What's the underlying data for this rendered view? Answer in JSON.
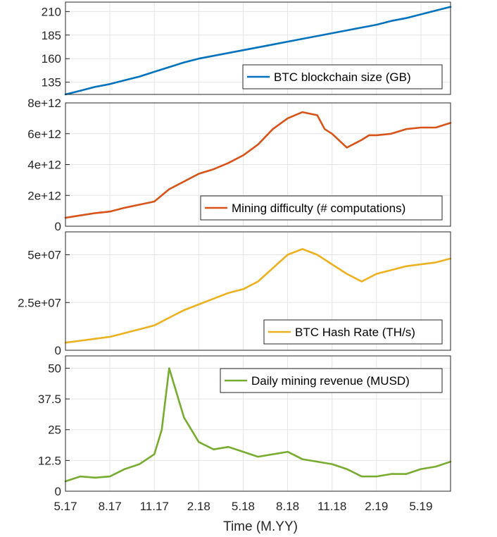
{
  "xlabel": "Time (M.YY)",
  "x_tick_labels": [
    "5.17",
    "8.17",
    "11.17",
    "2.18",
    "5.18",
    "8.18",
    "11.18",
    "2.19",
    "5.19"
  ],
  "chart_data": [
    {
      "type": "line",
      "series_name": "BTC blockchain size (GB)",
      "color": "#0072BD",
      "ylim": [
        122,
        220
      ],
      "y_ticks": [
        135,
        160,
        185,
        210
      ],
      "y_tick_labels": [
        "135",
        "160",
        "185",
        "210"
      ],
      "legend": "BTC blockchain size (GB)",
      "x": [
        0,
        1,
        2,
        3,
        4,
        5,
        6,
        7,
        8,
        9,
        10,
        11,
        12,
        13,
        14,
        15,
        16,
        17,
        18,
        19,
        20,
        21,
        22,
        23,
        24,
        25,
        26
      ],
      "values": [
        122,
        126,
        130,
        133,
        137,
        141,
        146,
        151,
        156,
        160,
        163,
        166,
        169,
        172,
        175,
        178,
        181,
        184,
        187,
        190,
        193,
        196,
        200,
        203,
        207,
        211,
        215
      ]
    },
    {
      "type": "line",
      "series_name": "Mining difficulty (# computations)",
      "color": "#D95319",
      "ylim": [
        0,
        8000000000000.0
      ],
      "y_ticks": [
        0,
        2000000000000.0,
        4000000000000.0,
        6000000000000.0,
        8000000000000.0
      ],
      "y_tick_labels": [
        "0",
        "2e+12",
        "4e+12",
        "6e+12",
        "8e+12"
      ],
      "legend": "Mining difficulty (# computations)",
      "x": [
        0,
        1,
        2,
        3,
        4,
        5,
        6,
        7,
        8,
        9,
        10,
        11,
        12,
        13,
        14,
        15,
        16,
        17,
        17.5,
        18,
        19,
        20,
        20.5,
        21,
        22,
        23,
        24,
        25,
        26
      ],
      "values": [
        550000000000.0,
        700000000000.0,
        850000000000.0,
        950000000000.0,
        1200000000000.0,
        1400000000000.0,
        1600000000000.0,
        2400000000000.0,
        2900000000000.0,
        3400000000000.0,
        3700000000000.0,
        4100000000000.0,
        4600000000000.0,
        5300000000000.0,
        6300000000000.0,
        7000000000000.0,
        7400000000000.0,
        7200000000000.0,
        6300000000000.0,
        6000000000000.0,
        5100000000000.0,
        5600000000000.0,
        5900000000000.0,
        5900000000000.0,
        6000000000000.0,
        6300000000000.0,
        6400000000000.0,
        6400000000000.0,
        6700000000000.0
      ]
    },
    {
      "type": "line",
      "series_name": "BTC Hash Rate (TH/s)",
      "color": "#EDB120",
      "ylim": [
        0,
        62000000.0
      ],
      "y_ticks": [
        0,
        25000000.0,
        50000000.0
      ],
      "y_tick_labels": [
        "0",
        "2.5e+07",
        "5e+07"
      ],
      "legend": "BTC Hash Rate (TH/s)",
      "x": [
        0,
        1,
        2,
        3,
        4,
        5,
        6,
        7,
        8,
        9,
        10,
        11,
        12,
        13,
        14,
        15,
        16,
        17,
        18,
        19,
        20,
        21,
        22,
        23,
        24,
        25,
        26
      ],
      "values": [
        4000000.0,
        5000000.0,
        6000000.0,
        7000000.0,
        9000000.0,
        11000000.0,
        13000000.0,
        17000000.0,
        21000000.0,
        24000000.0,
        27000000.0,
        30000000.0,
        32000000.0,
        36000000.0,
        43000000.0,
        50000000.0,
        53000000.0,
        50000000.0,
        45000000.0,
        40000000.0,
        36000000.0,
        40000000.0,
        42000000.0,
        44000000.0,
        45000000.0,
        46000000.0,
        48000000.0
      ]
    },
    {
      "type": "line",
      "series_name": "Daily mining revenue (MUSD)",
      "color": "#77AC30",
      "ylim": [
        0,
        55
      ],
      "y_ticks": [
        0,
        12.5,
        25,
        37.5,
        50
      ],
      "y_tick_labels": [
        "0",
        "12.5",
        "25",
        "37.5",
        "50"
      ],
      "legend": "Daily mining revenue (MUSD)",
      "x": [
        0,
        1,
        2,
        3,
        4,
        5,
        6,
        6.5,
        7,
        7.5,
        8,
        9,
        10,
        11,
        12,
        13,
        14,
        15,
        16,
        17,
        18,
        19,
        20,
        21,
        22,
        23,
        24,
        25,
        26
      ],
      "values": [
        4,
        6,
        5.5,
        6,
        9,
        11,
        15,
        25,
        50,
        40,
        30,
        20,
        17,
        18,
        16,
        14,
        15,
        16,
        13,
        12,
        11,
        9,
        6,
        6,
        7,
        7,
        9,
        10,
        12
      ]
    }
  ]
}
